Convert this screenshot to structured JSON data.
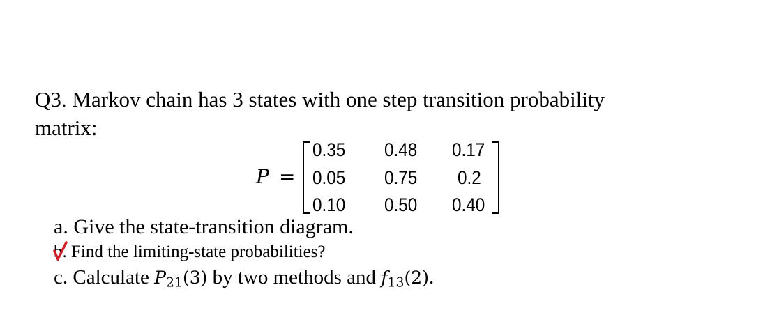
{
  "question": {
    "line1": "Q3. Markov chain has 3 states with one step transition probability",
    "line2": "matrix:"
  },
  "matrix": {
    "symbol": "P",
    "equals": "=",
    "rows": [
      [
        "0.35",
        "0.48",
        "0.17"
      ],
      [
        "0.05",
        "0.75",
        "0.2"
      ],
      [
        "0.10",
        "0.50",
        "0.40"
      ]
    ]
  },
  "parts": [
    {
      "label": "a.",
      "text": "Give the state-transition diagram."
    },
    {
      "label": "b.",
      "text": "Find the limiting-state probabilities?",
      "checked": true,
      "check_color": "#d0202a"
    },
    {
      "label": "c.",
      "text_pre": "Calculate ",
      "p_sym": "P",
      "p_sub": "21",
      "p_arg": "(3)",
      "text_mid": " by two methods and ",
      "f_sym": "f",
      "f_sub": "13",
      "f_arg": "(2)",
      "text_end": "."
    }
  ]
}
